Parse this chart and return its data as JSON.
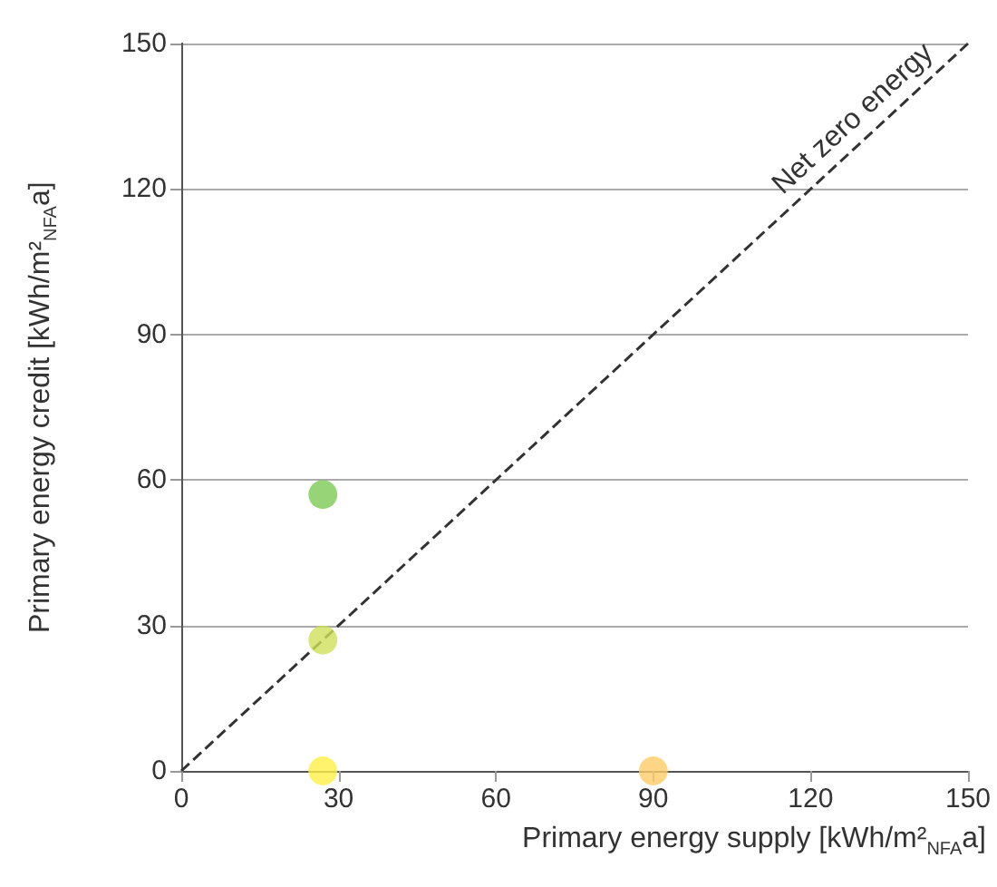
{
  "chart_data": {
    "type": "scatter",
    "xlabel": "Primary energy supply [kWh/m²$_{NFA}$a]",
    "ylabel": "Primary energy credit [kWh/m²$_{NFA}$a]",
    "series": [
      {
        "x": [
          27,
          27,
          27,
          90
        ],
        "values": [
          57,
          27,
          0,
          0
        ],
        "colors": [
          "#7dc855",
          "#cfe05a",
          "#fff04a",
          "#ffcc66"
        ]
      },
      {
        "type": "line",
        "name": "Net zero energy",
        "x": [
          0,
          150
        ],
        "values": [
          0,
          150
        ],
        "color": "#333333",
        "line_style": "dashed",
        "marker": "none"
      }
    ],
    "xlim": [
      0,
      150
    ],
    "xticks": [
      0,
      30,
      60,
      90,
      120,
      150
    ],
    "ylim": [
      0,
      150
    ],
    "yticks": [
      0,
      30,
      60,
      90,
      120,
      150
    ],
    "grid": "y",
    "legend": false,
    "marker": "circle"
  }
}
